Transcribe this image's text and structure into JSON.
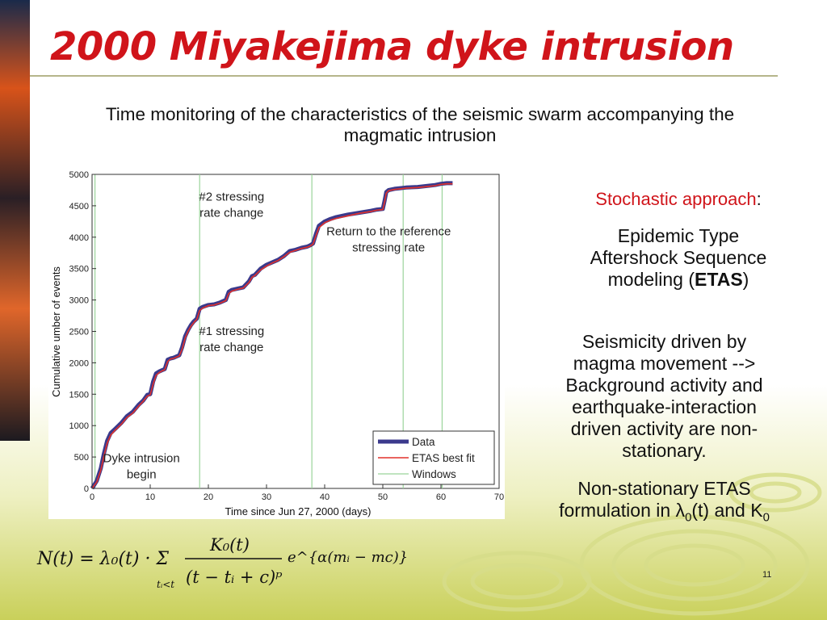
{
  "slide": {
    "title": "2000 Miyakejima dyke intrusion",
    "subtitle": "Time monitoring of the characteristics of the seismic swarm accompanying the magmatic intrusion",
    "page_number": "11",
    "colors": {
      "title": "#d0141a",
      "accent_red": "#d0141a",
      "line_olive": "#b5b58a"
    }
  },
  "right_panel": {
    "stochastic_label": "Stochastic approach",
    "stochastic_colon": ":",
    "etas_line1": "Epidemic Type",
    "etas_line2": "Aftershock Sequence",
    "etas_line3_pre": "modeling (",
    "etas_bold": "ETAS",
    "etas_line3_post": ")",
    "seismicity_line1": "Seismicity driven by",
    "seismicity_line2": "magma movement -->",
    "seismicity_line3": "Background activity and",
    "seismicity_line4": "earthquake-interaction",
    "seismicity_line5": "driven activity are non-",
    "seismicity_line6": "stationary.",
    "nonstat_line1": "Non-stationary ETAS",
    "nonstat_line2_pre": "formulation in λ",
    "nonstat_sub0": "0",
    "nonstat_line2_mid": "(t) and K",
    "nonstat_sub1": "0"
  },
  "formula": {
    "lhs": "N(t) = λ₀(t) · Σ",
    "sum_sub": "tᵢ<t",
    "numerator": "K₀(t)",
    "denominator": "(t − tᵢ + c)ᵖ",
    "exp": "e^{α(mᵢ − mc)}"
  },
  "chart_data": {
    "type": "line",
    "xlabel": "Time since Jun 27, 2000 (days)",
    "ylabel": "Cumulative umber of events",
    "xlim": [
      0,
      70
    ],
    "ylim": [
      0,
      5000
    ],
    "xticks": [
      0,
      10,
      20,
      30,
      40,
      50,
      60,
      70
    ],
    "yticks": [
      0,
      500,
      1000,
      1500,
      2000,
      2500,
      3000,
      3500,
      4000,
      4500,
      5000
    ],
    "grid": false,
    "legend_position": "bottom-right",
    "windows_x": [
      0.5,
      18.5,
      37.8,
      53.5,
      60.2
    ],
    "series": [
      {
        "name": "Data",
        "color": "#3b3a8c",
        "x": [
          0,
          0.8,
          1.5,
          2,
          2.6,
          3.2,
          4,
          5,
          6,
          7,
          8,
          8.8,
          9.5,
          10,
          10.5,
          11,
          11.5,
          12,
          12.5,
          13,
          13.5,
          14,
          14.5,
          15,
          15.5,
          16,
          16.5,
          17,
          17.5,
          18,
          18.5,
          19,
          20,
          21,
          22,
          23,
          23.5,
          24,
          25,
          26,
          27,
          27.5,
          28,
          29,
          30,
          31,
          32,
          33,
          34,
          35,
          36,
          37,
          37.5,
          38,
          38.5,
          39,
          40,
          41,
          42,
          44,
          46,
          48,
          49,
          50,
          50.3,
          50.6,
          51,
          52,
          53,
          54,
          56,
          58,
          59,
          60,
          61,
          62
        ],
        "values": [
          0,
          120,
          320,
          540,
          760,
          880,
          950,
          1040,
          1150,
          1220,
          1330,
          1400,
          1490,
          1500,
          1700,
          1830,
          1860,
          1880,
          1900,
          2050,
          2070,
          2080,
          2100,
          2120,
          2250,
          2420,
          2520,
          2600,
          2660,
          2700,
          2860,
          2890,
          2920,
          2930,
          2960,
          3000,
          3130,
          3160,
          3180,
          3200,
          3300,
          3380,
          3400,
          3500,
          3560,
          3600,
          3640,
          3700,
          3780,
          3800,
          3830,
          3850,
          3870,
          3900,
          4050,
          4180,
          4250,
          4290,
          4320,
          4360,
          4390,
          4420,
          4440,
          4450,
          4580,
          4720,
          4750,
          4770,
          4780,
          4790,
          4800,
          4820,
          4830,
          4850,
          4860,
          4860
        ]
      },
      {
        "name": "ETAS best fit",
        "color": "#e2312b",
        "x": [
          0,
          0.8,
          1.5,
          2,
          2.6,
          3.2,
          4,
          5,
          6,
          7,
          8,
          8.8,
          9.5,
          10,
          10.5,
          11,
          11.5,
          12,
          12.5,
          13,
          13.5,
          14,
          14.5,
          15,
          15.5,
          16,
          16.5,
          17,
          17.5,
          18,
          18.5,
          19,
          20,
          21,
          22,
          23,
          23.5,
          24,
          25,
          26,
          27,
          27.5,
          28,
          29,
          30,
          31,
          32,
          33,
          34,
          35,
          36,
          37,
          37.5,
          38,
          38.5,
          39,
          40,
          41,
          42,
          44,
          46,
          48,
          49,
          50,
          50.3,
          50.6,
          51,
          52,
          53,
          54,
          56,
          58,
          59,
          60,
          61,
          62
        ],
        "values": [
          0,
          100,
          290,
          500,
          720,
          850,
          930,
          1020,
          1130,
          1200,
          1310,
          1390,
          1470,
          1490,
          1660,
          1800,
          1840,
          1870,
          1890,
          2020,
          2060,
          2070,
          2090,
          2110,
          2220,
          2390,
          2500,
          2580,
          2640,
          2690,
          2830,
          2870,
          2910,
          2920,
          2950,
          2990,
          3100,
          3140,
          3170,
          3190,
          3280,
          3360,
          3390,
          3480,
          3540,
          3590,
          3630,
          3690,
          3760,
          3790,
          3820,
          3840,
          3860,
          3890,
          4020,
          4150,
          4230,
          4270,
          4300,
          4340,
          4380,
          4410,
          4430,
          4440,
          4560,
          4700,
          4740,
          4760,
          4770,
          4780,
          4790,
          4810,
          4820,
          4840,
          4850,
          4850
        ]
      },
      {
        "name": "Windows",
        "color": "#9bd49b"
      }
    ],
    "annotations": [
      {
        "line1": "#2 stressing",
        "line2": "rate change",
        "x": 24,
        "y": 4580
      },
      {
        "line1": "Return to the reference",
        "line2": "stressing rate",
        "x": 51,
        "y": 4030
      },
      {
        "line1": "#1 stressing",
        "line2": "rate change",
        "x": 24,
        "y": 2440
      },
      {
        "line1": "Dyke intrusion",
        "line2": "begin",
        "x": 8.5,
        "y": 420
      }
    ]
  }
}
